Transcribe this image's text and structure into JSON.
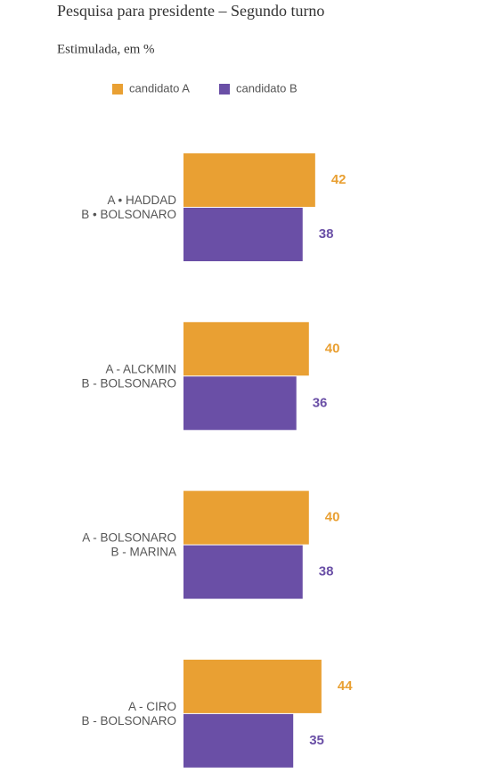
{
  "chart_data": {
    "type": "hbar-grouped",
    "title": "Pesquisa para presidente – Segundo turno",
    "subtitle": "Estimulada, em %",
    "categories": [
      [
        "A • HADDAD",
        "B • BOLSONARO"
      ],
      [
        "A - ALCKMIN",
        "B - BOLSONARO"
      ],
      [
        "A - BOLSONARO",
        "B - MARINA"
      ],
      [
        "A - CIRO",
        "B - BOLSONARO"
      ]
    ],
    "series": [
      {
        "name": "candidato A",
        "color": "#e9a033",
        "values": [
          42,
          40,
          40,
          44
        ]
      },
      {
        "name": "candidato B",
        "color": "#6a4fa6",
        "values": [
          38,
          36,
          38,
          35
        ]
      }
    ],
    "legend": "top"
  }
}
